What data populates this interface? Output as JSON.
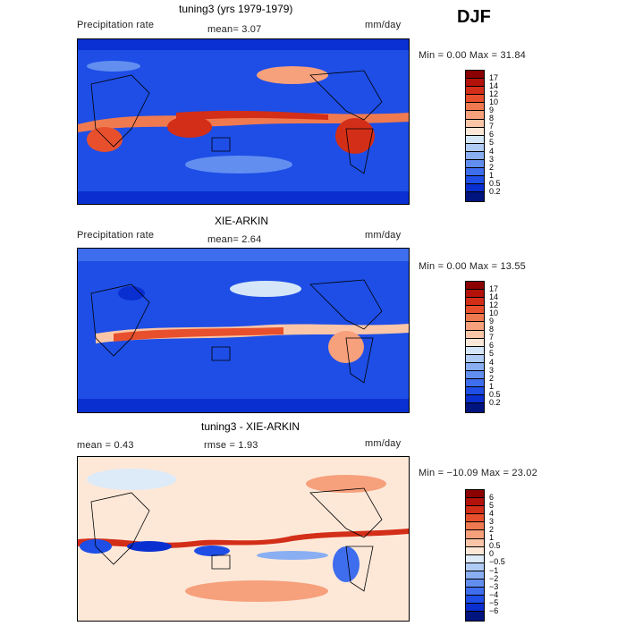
{
  "season": "DJF",
  "panels": [
    {
      "title": "tuning3 (yrs 1979-1979)",
      "left": "Precipitation rate",
      "mid": "mean=    3.07",
      "units": "mm/day",
      "minmax": "Min =    0.00  Max =   31.84",
      "colorbar": {
        "labels": [
          "17",
          "14",
          "12",
          "10",
          "9",
          "8",
          "7",
          "6",
          "5",
          "4",
          "3",
          "2",
          "1",
          "0.5",
          "0.2"
        ],
        "colors": [
          "#8b0000",
          "#b3120a",
          "#d32e18",
          "#e8502d",
          "#f07a50",
          "#f6a07c",
          "#fbc6a8",
          "#fde8d8",
          "#d4e6f8",
          "#b0ccf5",
          "#8aaef2",
          "#628ef0",
          "#3e6ded",
          "#1e4ee6",
          "#0a2fd0",
          "#00147f"
        ]
      }
    },
    {
      "title": "XIE-ARKIN",
      "left": "Precipitation rate",
      "mid": "mean=    2.64",
      "units": "mm/day",
      "minmax": "Min =    0.00  Max =   13.55",
      "colorbar": {
        "labels": [
          "17",
          "14",
          "12",
          "10",
          "9",
          "8",
          "7",
          "6",
          "5",
          "4",
          "3",
          "2",
          "1",
          "0.5",
          "0.2"
        ],
        "colors": [
          "#8b0000",
          "#b3120a",
          "#d32e18",
          "#e8502d",
          "#f07a50",
          "#f6a07c",
          "#fbc6a8",
          "#fde8d8",
          "#d4e6f8",
          "#b0ccf5",
          "#8aaef2",
          "#628ef0",
          "#3e6ded",
          "#1e4ee6",
          "#0a2fd0",
          "#00147f"
        ]
      }
    },
    {
      "title": "tuning3 - XIE-ARKIN",
      "left": "mean =    0.43",
      "mid": "rmse =    1.93",
      "units": "mm/day",
      "minmax": "Min = −10.09  Max =   23.02",
      "colorbar": {
        "labels": [
          "6",
          "5",
          "4",
          "3",
          "2",
          "1",
          "0.5",
          "0",
          "−0.5",
          "−1",
          "−2",
          "−3",
          "−4",
          "−5",
          "−6"
        ],
        "colors": [
          "#8b0000",
          "#b3120a",
          "#d32e18",
          "#e8502d",
          "#f07a50",
          "#f6a07c",
          "#fbc6a8",
          "#fde8d8",
          "#ddeaf8",
          "#b0ccf5",
          "#8aaef2",
          "#628ef0",
          "#3e6ded",
          "#1e4ee6",
          "#0a2fd0",
          "#00147f"
        ]
      }
    }
  ]
}
